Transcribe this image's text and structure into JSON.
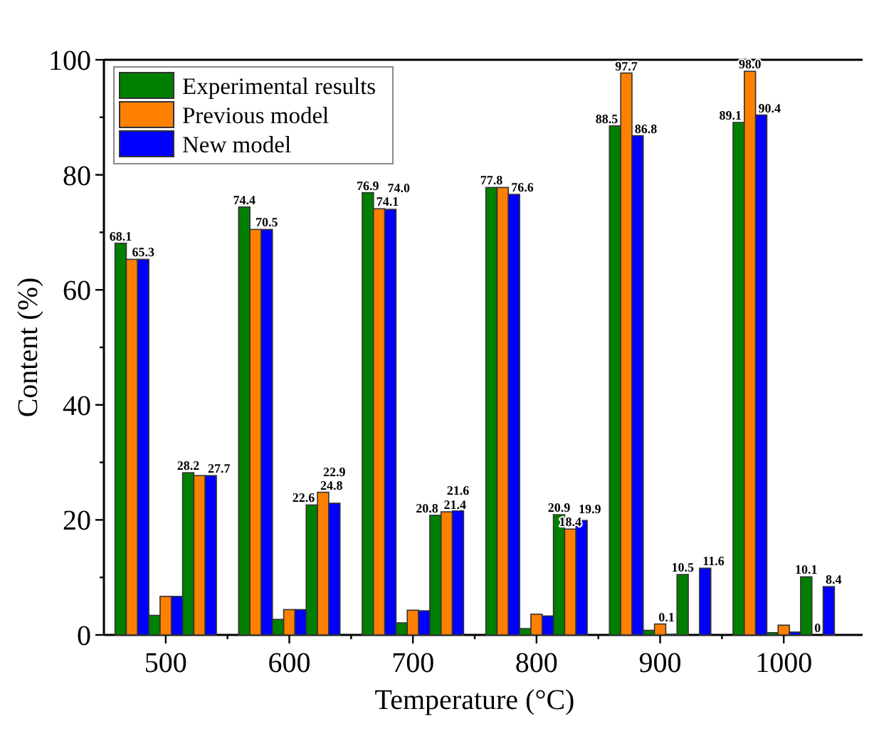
{
  "chart_data": {
    "type": "bar",
    "xlabel": "Temperature (°C)",
    "ylabel": "Content (%)",
    "categories": [
      null,
      "500",
      null,
      null,
      "600",
      null,
      null,
      "700",
      null,
      null,
      "800",
      null,
      null,
      "900",
      null,
      null,
      "1000",
      null
    ],
    "ylim": [
      0,
      100
    ],
    "yticks": [
      0,
      {
        "value": 10,
        "label": null
      },
      20,
      {
        "value": 30,
        "label": null
      },
      40,
      {
        "value": 50,
        "label": null
      },
      60,
      {
        "value": 70,
        "label": null
      },
      80,
      {
        "value": 90,
        "label": null
      },
      100
    ],
    "legend": "top left",
    "grid": false,
    "series": [
      {
        "name": "Experimental results",
        "color": "#008000",
        "values": [
          68.1,
          3.4,
          28.2,
          74.4,
          2.7,
          22.6,
          76.9,
          2.1,
          20.8,
          77.8,
          1.1,
          20.9,
          88.5,
          0.8,
          10.5,
          89.1,
          0.4,
          10.1
        ],
        "value_labels": [
          "68.1",
          null,
          "28.2",
          "74.4",
          null,
          "22.6",
          "76.9",
          null,
          "20.8",
          "77.8",
          null,
          "20.9",
          "88.5",
          null,
          "10.5",
          "89.1",
          null,
          "10.1"
        ]
      },
      {
        "name": "Previous model",
        "color": "#ff8000",
        "values": [
          65.3,
          6.7,
          27.7,
          70.5,
          4.4,
          24.8,
          74.1,
          4.3,
          21.4,
          77.8,
          3.6,
          18.4,
          97.7,
          1.9,
          null,
          98.0,
          1.7,
          0
        ],
        "value_labels": [
          null,
          null,
          null,
          null,
          null,
          "24.8",
          "74.1",
          null,
          "21.4",
          null,
          null,
          "18.4",
          "97.7",
          null,
          null,
          "98.0",
          null,
          "0"
        ]
      },
      {
        "name": "New model",
        "color": "#0000ff",
        "values": [
          65.3,
          6.7,
          27.7,
          70.5,
          4.4,
          22.9,
          74.0,
          4.2,
          21.6,
          76.6,
          3.3,
          19.9,
          86.8,
          0.1,
          11.6,
          90.4,
          0.5,
          8.4
        ],
        "value_labels": [
          "65.3",
          null,
          "27.7",
          "70.5",
          null,
          "22.9",
          "74.0",
          null,
          "21.6",
          "76.6",
          null,
          "19.9",
          "86.8",
          "0.1",
          "11.6",
          "90.4",
          null,
          "8.4"
        ]
      }
    ]
  }
}
